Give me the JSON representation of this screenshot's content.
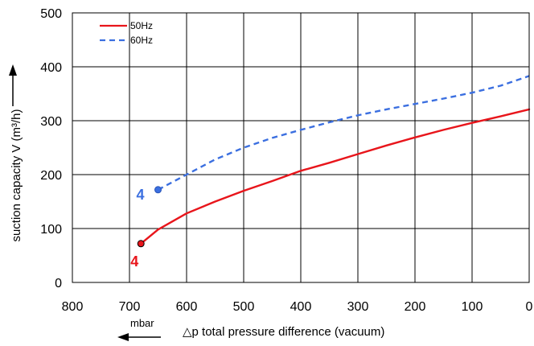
{
  "chart_data": {
    "type": "line",
    "title": "",
    "xlabel": "△p total pressure difference (vacuum)",
    "xlabel_unit": "mbar",
    "ylabel": "suction capacity V (m³/h)",
    "xlim": [
      800,
      0
    ],
    "ylim": [
      0,
      500
    ],
    "x_ticks": [
      "800",
      "700",
      "600",
      "500",
      "400",
      "300",
      "200",
      "100",
      "0"
    ],
    "y_ticks": [
      "0",
      "100",
      "200",
      "300",
      "400",
      "500"
    ],
    "x_tick_values": [
      800,
      700,
      600,
      500,
      400,
      300,
      200,
      100,
      0
    ],
    "y_tick_values": [
      0,
      100,
      200,
      300,
      400,
      500
    ],
    "grid": true,
    "legend_position": "top-left",
    "series": [
      {
        "name": "50Hz",
        "color": "#e8151b",
        "style": "solid",
        "x": [
          680,
          650,
          600,
          550,
          500,
          450,
          400,
          350,
          300,
          250,
          200,
          150,
          100,
          50,
          0
        ],
        "y": [
          72,
          98,
          128,
          150,
          170,
          188,
          207,
          222,
          238,
          254,
          269,
          283,
          296,
          308,
          321
        ],
        "end_label": "4"
      },
      {
        "name": "60Hz",
        "color": "#3b6fe0",
        "style": "dashed",
        "x": [
          650,
          600,
          550,
          500,
          450,
          400,
          350,
          300,
          250,
          200,
          150,
          100,
          50,
          0
        ],
        "y": [
          172,
          200,
          228,
          250,
          268,
          283,
          297,
          310,
          321,
          331,
          341,
          352,
          365,
          383
        ],
        "end_label": "4"
      }
    ]
  }
}
